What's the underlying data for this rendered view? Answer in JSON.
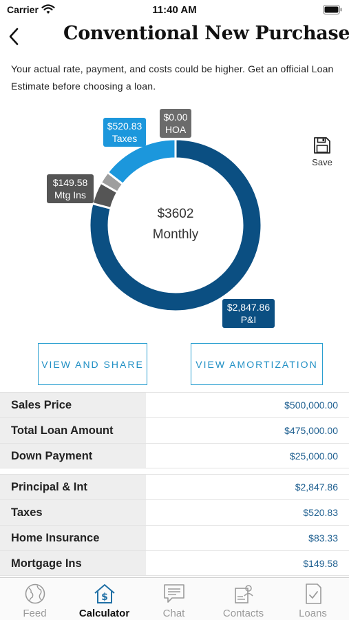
{
  "status_bar": {
    "carrier": "Carrier",
    "time": "11:40 AM"
  },
  "header": {
    "title": "Conventional New Purchase"
  },
  "disclaimer": "Your actual rate, payment, and costs could be higher. Get an official Loan Estimate before choosing a loan.",
  "chart": {
    "center_amount": "$3602",
    "center_label": "Monthly",
    "segments": [
      {
        "key": "pi",
        "amount": "$2,847.86",
        "label": "P&I",
        "value": 2847.86,
        "color": "#0b4f82"
      },
      {
        "key": "mtg",
        "amount": "$149.58",
        "label": "Mtg Ins",
        "value": 149.58,
        "color": "#555555"
      },
      {
        "key": "ins",
        "amount": "",
        "label": "",
        "value": 83.33,
        "color": "#9e9e9e"
      },
      {
        "key": "taxes",
        "amount": "$520.83",
        "label": "Taxes",
        "value": 520.83,
        "color": "#1c97dc"
      },
      {
        "key": "hoa",
        "amount": "$0.00",
        "label": "HOA",
        "value": 0.0,
        "color": "#6b6b6b"
      }
    ]
  },
  "save": {
    "label": "Save",
    "icon": "floppy-disk-icon"
  },
  "buttons": {
    "view_share": "VIEW AND SHARE",
    "view_amortization": "VIEW AMORTIZATION"
  },
  "loan_table": [
    {
      "label": "Sales Price",
      "value": "$500,000.00"
    },
    {
      "label": "Total Loan Amount",
      "value": "$475,000.00"
    },
    {
      "label": "Down Payment",
      "value": "$25,000.00"
    }
  ],
  "payment_table": [
    {
      "label": "Principal & Int",
      "value": "$2,847.86"
    },
    {
      "label": "Taxes",
      "value": "$520.83"
    },
    {
      "label": "Home Insurance",
      "value": "$83.33"
    },
    {
      "label": "Mortgage Ins",
      "value": "$149.58"
    }
  ],
  "tabs": [
    {
      "label": "Feed",
      "icon": "globe-icon",
      "active": false
    },
    {
      "label": "Calculator",
      "icon": "house-dollar-icon",
      "active": true
    },
    {
      "label": "Chat",
      "icon": "chat-icon",
      "active": false
    },
    {
      "label": "Contacts",
      "icon": "contacts-icon",
      "active": false
    },
    {
      "label": "Loans",
      "icon": "checklist-icon",
      "active": false
    }
  ]
}
